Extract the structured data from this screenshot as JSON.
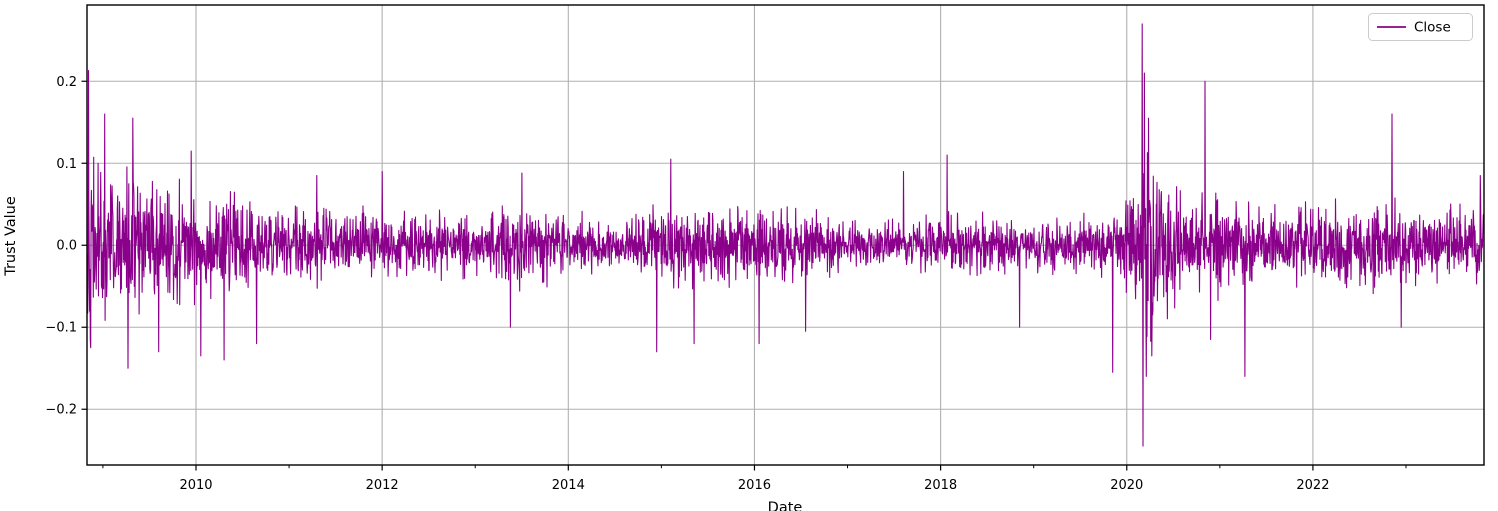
{
  "chart_data": {
    "type": "line",
    "title": "",
    "xlabel": "Date",
    "ylabel": "Trust Value",
    "grid": true,
    "grid_color": "#b0b0b0",
    "background_color": "#ffffff",
    "spine_color": "#000000",
    "legend": {
      "position": "upper right",
      "entries": [
        {
          "label": "Close",
          "color": "#8B008B"
        }
      ]
    },
    "x_axis": {
      "label": "Date",
      "range": [
        2008.829,
        2023.838
      ],
      "major_ticks": [
        2010,
        2012,
        2014,
        2016,
        2018,
        2020,
        2022
      ],
      "major_tick_labels": [
        "2010",
        "2012",
        "2014",
        "2016",
        "2018",
        "2020",
        "2022"
      ],
      "minor_ticks": [
        2009,
        2011,
        2013,
        2015,
        2017,
        2019,
        2021,
        2023
      ]
    },
    "y_axis": {
      "label": "Trust Value",
      "range": [
        -0.268,
        0.293
      ],
      "ticks": [
        -0.2,
        -0.1,
        0.0,
        0.1,
        0.2
      ],
      "tick_labels": [
        "−0.2",
        "−0.1",
        "0.0",
        "0.1",
        "0.2"
      ]
    },
    "series": [
      {
        "name": "Close",
        "color": "#8B008B",
        "line_width": 1.1,
        "points_per_year": 252,
        "seed": 42,
        "volatility_envelope": [
          [
            2008.83,
            0.045
          ],
          [
            2009.4,
            0.038
          ],
          [
            2010.0,
            0.028
          ],
          [
            2010.8,
            0.022
          ],
          [
            2012.2,
            0.017
          ],
          [
            2013.1,
            0.016
          ],
          [
            2013.45,
            0.026
          ],
          [
            2013.9,
            0.017
          ],
          [
            2014.6,
            0.014
          ],
          [
            2015.1,
            0.022
          ],
          [
            2016.3,
            0.021
          ],
          [
            2016.9,
            0.014
          ],
          [
            2017.6,
            0.012
          ],
          [
            2018.15,
            0.017
          ],
          [
            2019.0,
            0.013
          ],
          [
            2019.8,
            0.016
          ],
          [
            2020.1,
            0.03
          ],
          [
            2020.2,
            0.055
          ],
          [
            2020.35,
            0.04
          ],
          [
            2020.6,
            0.024
          ],
          [
            2021.0,
            0.026
          ],
          [
            2021.6,
            0.019
          ],
          [
            2022.3,
            0.022
          ],
          [
            2022.8,
            0.023
          ],
          [
            2023.3,
            0.018
          ],
          [
            2023.83,
            0.022
          ]
        ],
        "extreme_events": [
          [
            2008.845,
            0.213
          ],
          [
            2008.87,
            -0.125
          ],
          [
            2008.95,
            0.1
          ],
          [
            2009.02,
            0.16
          ],
          [
            2009.27,
            -0.15
          ],
          [
            2009.32,
            0.155
          ],
          [
            2009.6,
            -0.13
          ],
          [
            2009.95,
            0.115
          ],
          [
            2010.05,
            -0.135
          ],
          [
            2010.3,
            -0.14
          ],
          [
            2010.65,
            -0.12
          ],
          [
            2011.3,
            0.085
          ],
          [
            2012.0,
            0.09
          ],
          [
            2013.38,
            -0.1
          ],
          [
            2013.5,
            0.088
          ],
          [
            2014.95,
            -0.13
          ],
          [
            2015.1,
            0.105
          ],
          [
            2015.35,
            -0.12
          ],
          [
            2016.05,
            -0.12
          ],
          [
            2016.55,
            -0.105
          ],
          [
            2017.6,
            0.09
          ],
          [
            2018.07,
            0.11
          ],
          [
            2018.85,
            -0.1
          ],
          [
            2019.85,
            -0.155
          ],
          [
            2020.165,
            0.27
          ],
          [
            2020.175,
            -0.245
          ],
          [
            2020.19,
            0.21
          ],
          [
            2020.21,
            -0.16
          ],
          [
            2020.235,
            0.155
          ],
          [
            2020.27,
            -0.135
          ],
          [
            2020.84,
            0.2
          ],
          [
            2020.9,
            -0.115
          ],
          [
            2021.27,
            -0.16
          ],
          [
            2022.85,
            0.16
          ],
          [
            2022.95,
            -0.1
          ],
          [
            2023.8,
            0.085
          ]
        ]
      }
    ]
  }
}
